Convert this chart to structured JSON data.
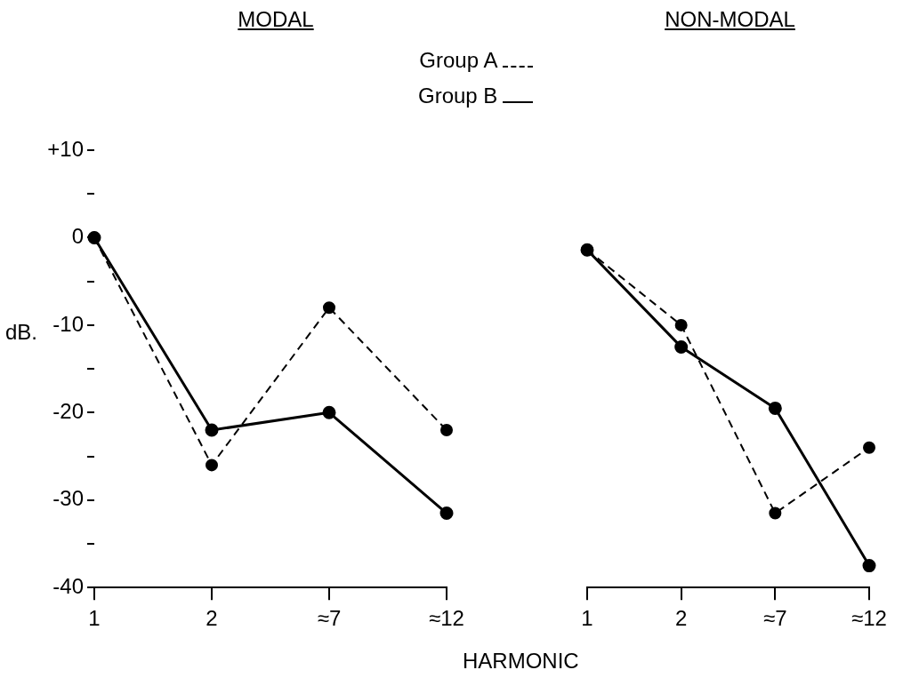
{
  "chart_data": [
    {
      "type": "line",
      "title": "MODAL",
      "xlabel": "HARMONIC",
      "ylabel": "dB.",
      "categories": [
        "1",
        "2",
        "≈7",
        "≈12"
      ],
      "series": [
        {
          "name": "Group A",
          "color": "#000000",
          "line_style": "dashed",
          "values": [
            0,
            -26,
            -8,
            -22
          ]
        },
        {
          "name": "Group B",
          "color": "#000000",
          "line_style": "solid",
          "values": [
            0,
            -22,
            -20,
            -31.5
          ]
        }
      ],
      "ylim": [
        -40,
        10
      ],
      "yticks": [
        -40,
        {
          "value": -35,
          "label": null
        },
        -30,
        {
          "value": -25,
          "label": null
        },
        -20,
        {
          "value": -15,
          "label": null
        },
        -10,
        {
          "value": -5,
          "label": null
        },
        0,
        {
          "value": 5,
          "label": null
        },
        {
          "value": 10,
          "label": "+10"
        }
      ],
      "legend": "top",
      "marker": "circle",
      "grid": false
    },
    {
      "type": "line",
      "title": "NON-MODAL",
      "categories": [
        "1",
        "2",
        "≈7",
        "≈12"
      ],
      "series": [
        {
          "color": "#000000",
          "line_style": "dashed",
          "values": [
            -1.4,
            -10,
            -31.5,
            -24
          ]
        },
        {
          "color": "#000000",
          "line_style": "solid",
          "values": [
            -1.4,
            -12.5,
            -19.5,
            -37.5
          ]
        }
      ],
      "ylim": [
        -40,
        10
      ],
      "tick_labels": "x",
      "marker": "circle",
      "grid": false
    }
  ]
}
